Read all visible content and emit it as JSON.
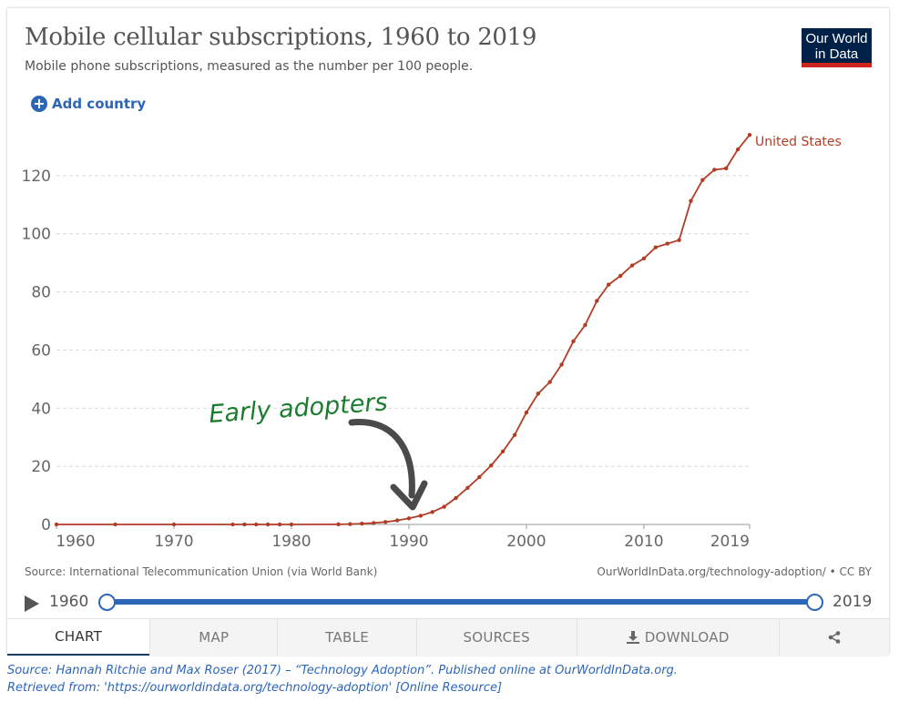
{
  "header": {
    "title": "Mobile cellular subscriptions, 1960 to 2019",
    "subtitle": "Mobile phone subscriptions, measured as the number per 100 people.",
    "logo_line1": "Our World",
    "logo_line2": "in Data",
    "add_country_label": "Add country"
  },
  "colors": {
    "series": "#b13d26",
    "annotation": "#1a7d2e",
    "arrow": "#4a4a4a",
    "accent": "#2c66b8",
    "logo_bg": "#002147",
    "logo_bar": "#ce261e"
  },
  "chart_data": {
    "type": "line",
    "x_ticks": [
      1960,
      1970,
      1980,
      1990,
      2000,
      2010,
      2019
    ],
    "y_ticks": [
      0,
      20,
      40,
      60,
      80,
      100,
      120
    ],
    "xlim": [
      1960,
      2019
    ],
    "ylim": [
      0,
      140
    ],
    "grid": "horizontal dashed",
    "series": [
      {
        "name": "United States",
        "x": [
          1960,
          1965,
          1970,
          1975,
          1976,
          1977,
          1978,
          1979,
          1980,
          1984,
          1985,
          1986,
          1987,
          1988,
          1989,
          1990,
          1991,
          1992,
          1993,
          1994,
          1995,
          1996,
          1997,
          1998,
          1999,
          2000,
          2001,
          2002,
          2003,
          2004,
          2005,
          2006,
          2007,
          2008,
          2009,
          2010,
          2011,
          2012,
          2013,
          2014,
          2015,
          2016,
          2017,
          2018,
          2019
        ],
        "y": [
          0,
          0,
          0,
          0,
          0,
          0,
          0,
          0,
          0,
          0.04,
          0.14,
          0.28,
          0.5,
          0.83,
          1.38,
          2.1,
          3.0,
          4.3,
          6.1,
          9.1,
          12.6,
          16.3,
          20.3,
          25.1,
          30.8,
          38.5,
          45.0,
          49.0,
          55.0,
          63.0,
          68.6,
          76.9,
          82.5,
          85.5,
          89.1,
          91.5,
          95.3,
          96.6,
          97.8,
          111.3,
          118.5,
          122.0,
          122.5,
          129.0,
          134.0
        ]
      }
    ],
    "annotation": "Early adopters"
  },
  "footer_bar": {
    "source": "Source: International Telecommunication Union (via World Bank)",
    "credit": "OurWorldInData.org/technology-adoption/ • CC BY"
  },
  "timeline": {
    "start": "1960",
    "end": "2019"
  },
  "tabs": [
    {
      "label": "CHART"
    },
    {
      "label": "MAP"
    },
    {
      "label": "TABLE"
    },
    {
      "label": "SOURCES"
    },
    {
      "label": "DOWNLOAD"
    }
  ],
  "citation": {
    "line1": "Source: Hannah Ritchie and Max Roser (2017) – “Technology Adoption”. Published online at OurWorldInData.org.",
    "line2": "Retrieved from: 'https://ourworldindata.org/technology-adoption' [Online Resource]"
  }
}
